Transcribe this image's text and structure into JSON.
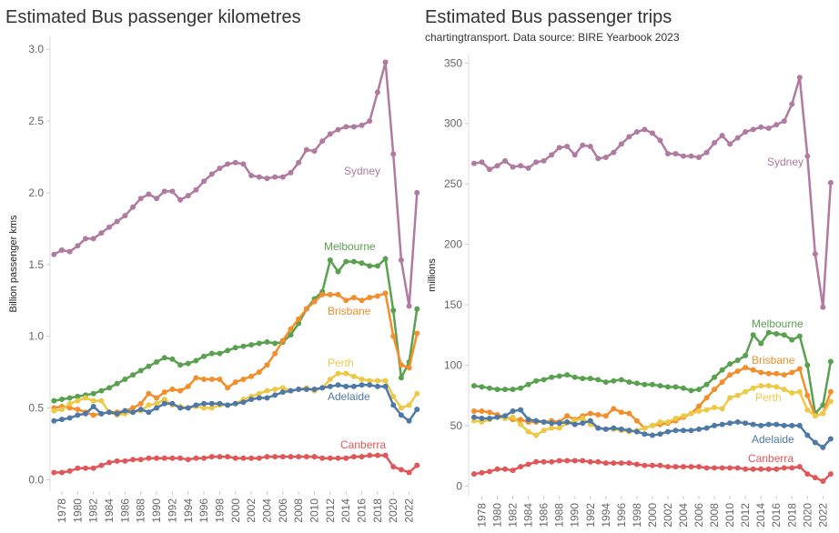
{
  "chart_data": [
    {
      "type": "line",
      "title": "Estimated Bus passenger kilometres",
      "y_label": "Billion passenger kms",
      "x": [
        1977,
        1978,
        1979,
        1980,
        1981,
        1982,
        1983,
        1984,
        1985,
        1986,
        1987,
        1988,
        1989,
        1990,
        1991,
        1992,
        1993,
        1994,
        1995,
        1996,
        1997,
        1998,
        1999,
        2000,
        2001,
        2002,
        2003,
        2004,
        2005,
        2006,
        2007,
        2008,
        2009,
        2010,
        2011,
        2012,
        2013,
        2014,
        2015,
        2016,
        2017,
        2018,
        2019,
        2020,
        2021,
        2022,
        2023
      ],
      "xlim": [
        1976.5,
        2023.2
      ],
      "xticks": [
        1978,
        1980,
        1982,
        1984,
        1986,
        1988,
        1990,
        1992,
        1994,
        1996,
        1998,
        2000,
        2002,
        2004,
        2006,
        2008,
        2010,
        2012,
        2014,
        2016,
        2018,
        2020,
        2022
      ],
      "ylim": [
        -0.08,
        3.09
      ],
      "yticks": [
        {
          "value": 0,
          "label": "0.0"
        },
        0.5,
        {
          "value": 1,
          "label": "1.0"
        },
        1.5,
        {
          "value": 2,
          "label": "2.0"
        },
        2.5,
        {
          "value": 3,
          "label": "3.0"
        }
      ],
      "series": [
        {
          "name": "Sydney",
          "color": "#b07aa1",
          "values": [
            1.57,
            1.6,
            1.59,
            1.63,
            1.68,
            1.68,
            1.72,
            1.76,
            1.8,
            1.84,
            1.9,
            1.96,
            1.99,
            1.96,
            2.01,
            2.01,
            1.95,
            1.98,
            2.02,
            2.08,
            2.13,
            2.17,
            2.2,
            2.21,
            2.2,
            2.12,
            2.11,
            2.1,
            2.11,
            2.11,
            2.14,
            2.21,
            2.3,
            2.29,
            2.36,
            2.41,
            2.44,
            2.46,
            2.46,
            2.47,
            2.5,
            2.7,
            2.91,
            2.27,
            1.53,
            1.21,
            2.0
          ]
        },
        {
          "name": "Melbourne",
          "color": "#59a14f",
          "values": [
            0.55,
            0.56,
            0.57,
            0.58,
            0.59,
            0.6,
            0.62,
            0.64,
            0.67,
            0.7,
            0.73,
            0.76,
            0.79,
            0.82,
            0.85,
            0.84,
            0.8,
            0.81,
            0.83,
            0.86,
            0.88,
            0.88,
            0.9,
            0.92,
            0.93,
            0.94,
            0.95,
            0.96,
            0.95,
            0.96,
            1.01,
            1.09,
            1.19,
            1.26,
            1.31,
            1.53,
            1.45,
            1.52,
            1.52,
            1.51,
            1.49,
            1.49,
            1.54,
            1.18,
            0.71,
            0.82,
            1.19
          ]
        },
        {
          "name": "Brisbane",
          "color": "#f28e2b",
          "values": [
            0.5,
            0.51,
            0.5,
            0.49,
            0.47,
            0.45,
            0.46,
            0.47,
            0.47,
            0.48,
            0.5,
            0.53,
            0.6,
            0.57,
            0.61,
            0.63,
            0.62,
            0.65,
            0.71,
            0.7,
            0.7,
            0.7,
            0.64,
            0.68,
            0.7,
            0.72,
            0.75,
            0.8,
            0.88,
            0.97,
            1.05,
            1.12,
            1.19,
            1.24,
            1.29,
            1.29,
            1.29,
            1.25,
            1.27,
            1.25,
            1.27,
            1.28,
            1.3,
            1.0,
            0.8,
            0.78,
            1.02
          ]
        },
        {
          "name": "Perth",
          "color": "#edc948",
          "values": [
            0.48,
            0.49,
            0.53,
            0.55,
            0.57,
            0.55,
            0.55,
            0.47,
            0.45,
            0.46,
            0.47,
            0.48,
            0.52,
            0.53,
            0.56,
            0.52,
            0.51,
            0.5,
            0.51,
            0.5,
            0.5,
            0.52,
            0.52,
            0.53,
            0.56,
            0.58,
            0.6,
            0.62,
            0.63,
            0.64,
            0.62,
            0.63,
            0.64,
            0.62,
            0.64,
            0.7,
            0.74,
            0.74,
            0.72,
            0.7,
            0.69,
            0.69,
            0.69,
            0.58,
            0.5,
            0.52,
            0.6
          ]
        },
        {
          "name": "Adelaide",
          "color": "#4e79a7",
          "values": [
            0.41,
            0.42,
            0.43,
            0.45,
            0.46,
            0.51,
            0.46,
            0.47,
            0.46,
            0.48,
            0.47,
            0.49,
            0.47,
            0.5,
            0.53,
            0.53,
            0.5,
            0.5,
            0.52,
            0.53,
            0.53,
            0.53,
            0.52,
            0.53,
            0.54,
            0.56,
            0.57,
            0.57,
            0.59,
            0.61,
            0.62,
            0.63,
            0.63,
            0.63,
            0.64,
            0.65,
            0.66,
            0.65,
            0.65,
            0.66,
            0.66,
            0.65,
            0.65,
            0.52,
            0.45,
            0.41,
            0.49
          ]
        },
        {
          "name": "Canberra",
          "color": "#e15759",
          "values": [
            0.05,
            0.05,
            0.06,
            0.08,
            0.08,
            0.08,
            0.1,
            0.12,
            0.13,
            0.13,
            0.14,
            0.14,
            0.15,
            0.15,
            0.15,
            0.15,
            0.15,
            0.14,
            0.15,
            0.15,
            0.16,
            0.16,
            0.16,
            0.15,
            0.15,
            0.15,
            0.15,
            0.16,
            0.16,
            0.16,
            0.16,
            0.16,
            0.16,
            0.16,
            0.15,
            0.15,
            0.15,
            0.15,
            0.16,
            0.16,
            0.17,
            0.17,
            0.17,
            0.09,
            0.07,
            0.05,
            0.1
          ]
        }
      ]
    },
    {
      "type": "line",
      "title": "Estimated Bus passenger trips",
      "subtitle": "chartingtransport. Data source: BIRE Yearbook 2023",
      "y_label": "millions",
      "x": [
        1977,
        1978,
        1979,
        1980,
        1981,
        1982,
        1983,
        1984,
        1985,
        1986,
        1987,
        1988,
        1989,
        1990,
        1991,
        1992,
        1993,
        1994,
        1995,
        1996,
        1997,
        1998,
        1999,
        2000,
        2001,
        2002,
        2003,
        2004,
        2005,
        2006,
        2007,
        2008,
        2009,
        2010,
        2011,
        2012,
        2013,
        2014,
        2015,
        2016,
        2017,
        2018,
        2019,
        2020,
        2021,
        2022,
        2023
      ],
      "xlim": [
        1976.3,
        2023.6
      ],
      "xticks": [
        1978,
        1980,
        1982,
        1984,
        1986,
        1988,
        1990,
        1992,
        1994,
        1996,
        1998,
        2000,
        2002,
        2004,
        2006,
        2008,
        2010,
        2012,
        2014,
        2016,
        2018,
        2020,
        2022
      ],
      "ylim": [
        -8,
        357
      ],
      "yticks": [
        0,
        50,
        100,
        150,
        200,
        250,
        300,
        350
      ],
      "series": [
        {
          "name": "Sydney",
          "color": "#b07aa1",
          "values": [
            267,
            268,
            262,
            265,
            269,
            264,
            265,
            263,
            268,
            269,
            274,
            280,
            281,
            274,
            282,
            281,
            271,
            272,
            276,
            283,
            289,
            293,
            295,
            292,
            286,
            275,
            275,
            273,
            273,
            272,
            276,
            284,
            290,
            283,
            288,
            293,
            295,
            297,
            296,
            299,
            302,
            316,
            338,
            273,
            192,
            148,
            251
          ]
        },
        {
          "name": "Melbourne",
          "color": "#59a14f",
          "values": [
            83,
            82,
            81,
            80,
            80,
            80,
            81,
            84,
            87,
            88,
            90,
            91,
            92,
            90,
            89,
            89,
            88,
            86,
            87,
            88,
            86,
            85,
            84,
            84,
            83,
            82,
            82,
            81,
            79,
            80,
            84,
            90,
            96,
            101,
            104,
            108,
            125,
            118,
            127,
            126,
            125,
            121,
            124,
            100,
            60,
            67,
            103
          ]
        },
        {
          "name": "Brisbane",
          "color": "#f28e2b",
          "values": [
            62,
            62,
            61,
            59,
            57,
            55,
            55,
            53,
            53,
            53,
            54,
            53,
            58,
            55,
            58,
            60,
            59,
            58,
            64,
            61,
            60,
            54,
            48,
            50,
            51,
            52,
            54,
            57,
            60,
            66,
            73,
            80,
            86,
            92,
            95,
            98,
            96,
            94,
            93,
            93,
            92,
            94,
            97,
            75,
            58,
            60,
            78
          ]
        },
        {
          "name": "Perth",
          "color": "#edc948",
          "values": [
            54,
            53,
            55,
            57,
            56,
            57,
            51,
            45,
            42,
            46,
            48,
            48,
            52,
            54,
            56,
            51,
            48,
            47,
            47,
            46,
            45,
            46,
            48,
            50,
            53,
            53,
            56,
            58,
            60,
            62,
            63,
            65,
            64,
            73,
            75,
            78,
            81,
            83,
            83,
            82,
            80,
            77,
            78,
            63,
            58,
            60,
            70
          ]
        },
        {
          "name": "Adelaide",
          "color": "#4e79a7",
          "values": [
            57,
            56,
            56,
            57,
            58,
            62,
            63,
            55,
            54,
            53,
            52,
            52,
            53,
            51,
            52,
            54,
            48,
            47,
            48,
            47,
            46,
            45,
            43,
            42,
            43,
            45,
            46,
            46,
            46,
            47,
            48,
            50,
            51,
            52,
            53,
            52,
            51,
            50,
            51,
            51,
            50,
            50,
            50,
            42,
            36,
            32,
            39
          ]
        },
        {
          "name": "Canberra",
          "color": "#e15759",
          "values": [
            10,
            11,
            12,
            14,
            14,
            13,
            16,
            18,
            20,
            20,
            20,
            21,
            21,
            21,
            21,
            20,
            20,
            19,
            19,
            19,
            19,
            18,
            17,
            17,
            17,
            16,
            16,
            16,
            16,
            16,
            15,
            15,
            15,
            15,
            15,
            14,
            14,
            14,
            14,
            14,
            15,
            15,
            16,
            10,
            7,
            4,
            10
          ]
        }
      ]
    }
  ]
}
